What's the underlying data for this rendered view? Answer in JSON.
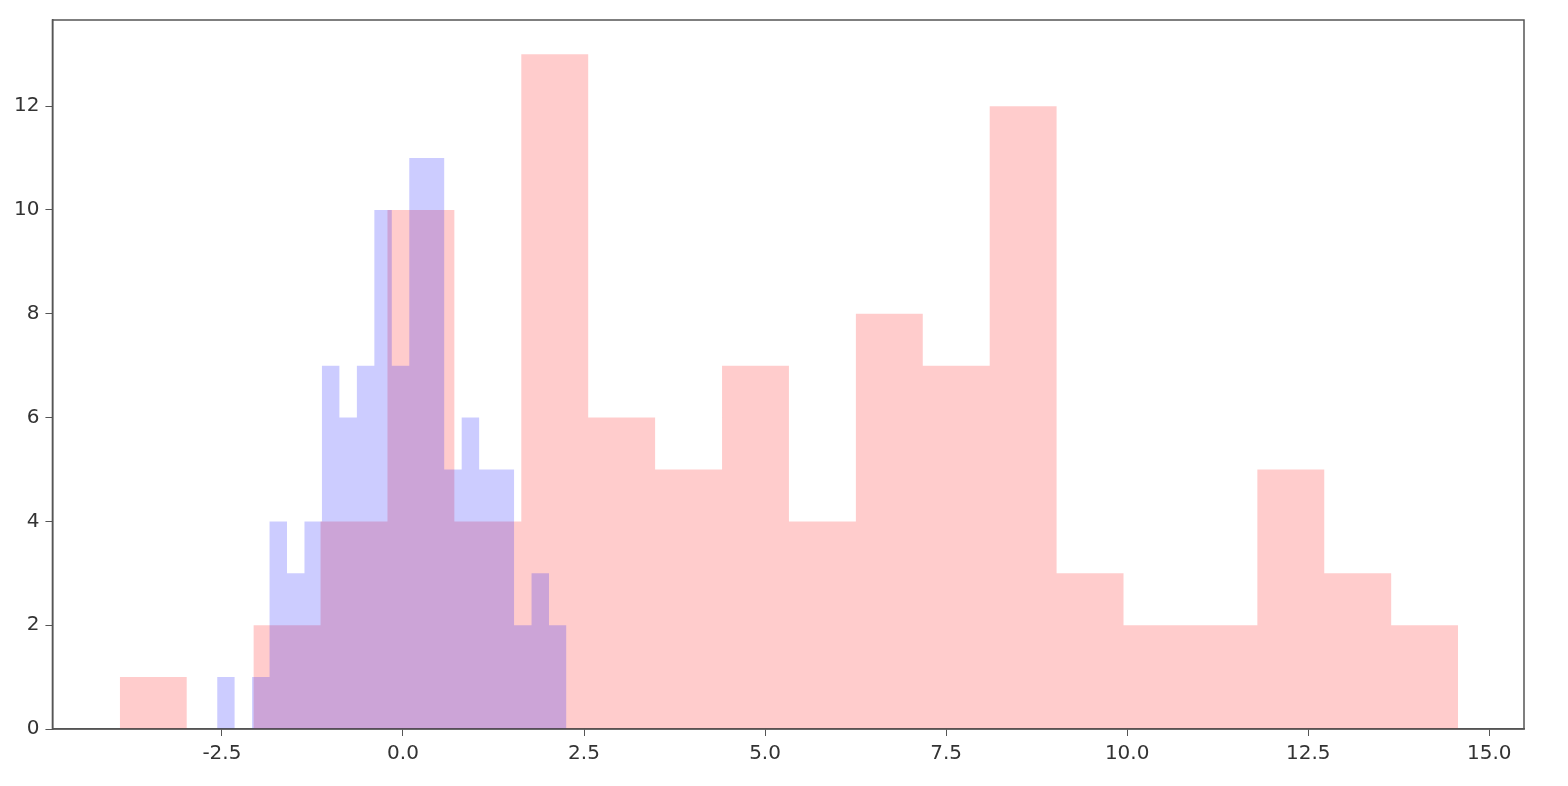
{
  "chart_data": {
    "type": "histogram",
    "series": [
      {
        "color": "#0000ff",
        "bins": [
          -2.566,
          -2.3248,
          -2.0836,
          -1.8424,
          -1.6012,
          -1.36,
          -1.1188,
          -0.8776,
          -0.6364,
          -0.3952,
          -0.154,
          0.0872,
          0.3284,
          0.5696,
          0.8108,
          1.052,
          1.2932,
          1.5344,
          1.7756,
          2.0168,
          2.258
        ],
        "values": [
          1,
          0,
          1,
          4,
          3,
          4,
          7,
          6,
          7,
          10,
          7,
          11,
          11,
          5,
          6,
          5,
          5,
          2,
          3,
          2
        ]
      },
      {
        "color": "#ff0000",
        "bins": [
          -3.91,
          -2.986,
          -2.062,
          -1.138,
          -0.214,
          0.71,
          1.634,
          2.558,
          3.482,
          4.406,
          5.33,
          6.254,
          7.178,
          8.102,
          9.026,
          9.95,
          10.874,
          11.798,
          12.722,
          13.646,
          14.57
        ],
        "values": [
          1,
          0,
          2,
          4,
          10,
          4,
          13,
          6,
          5,
          7,
          4,
          8,
          7,
          12,
          3,
          2,
          2,
          5,
          3,
          2
        ]
      }
    ],
    "xlim": [
      -4.84,
      15.48
    ],
    "xticks": [
      -2.5,
      {
        "value": 0,
        "label": "0.0"
      },
      2.5,
      {
        "value": 5,
        "label": "5.0"
      },
      7.5,
      {
        "value": 10,
        "label": "10.0"
      },
      12.5,
      {
        "value": 15,
        "label": "15.0"
      }
    ],
    "ylim": [
      0,
      13.66
    ],
    "yticks": [
      0,
      2,
      4,
      6,
      8,
      10,
      12
    ],
    "grid": false
  }
}
